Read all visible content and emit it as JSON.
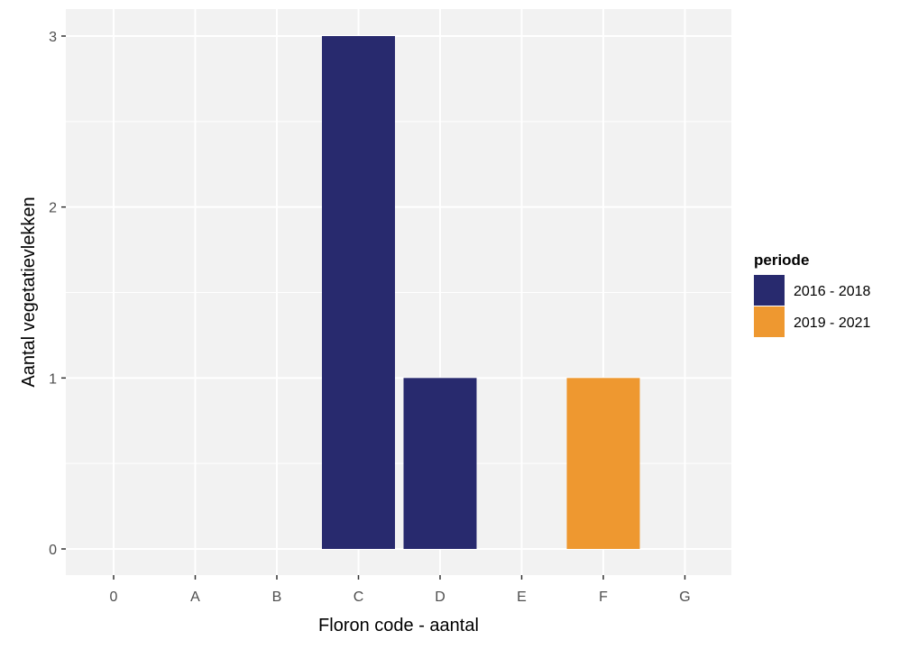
{
  "chart_data": {
    "type": "bar",
    "title": "",
    "xlabel": "Floron code - aantal",
    "ylabel": "Aantal vegetatievlekken",
    "categories": [
      "0",
      "A",
      "B",
      "C",
      "D",
      "E",
      "F",
      "G"
    ],
    "ylim": [
      0,
      3
    ],
    "yticks": [
      "0",
      "1",
      "2",
      "3"
    ],
    "grid": true,
    "legend": {
      "title": "periode",
      "position": "right",
      "entries": [
        "2016 - 2018",
        "2019 - 2021"
      ]
    },
    "series": [
      {
        "name": "2016 - 2018",
        "color": "#282A6E",
        "values": [
          0,
          0,
          0,
          3,
          1,
          0,
          0,
          0
        ]
      },
      {
        "name": "2019 - 2021",
        "color": "#EE9830",
        "values": [
          0,
          0,
          0,
          0,
          0,
          0,
          1,
          0
        ]
      }
    ]
  },
  "colors": {
    "panel_background": "#F2F2F2",
    "grid": "#FFFFFF",
    "tick_text": "#4D4D4D"
  }
}
